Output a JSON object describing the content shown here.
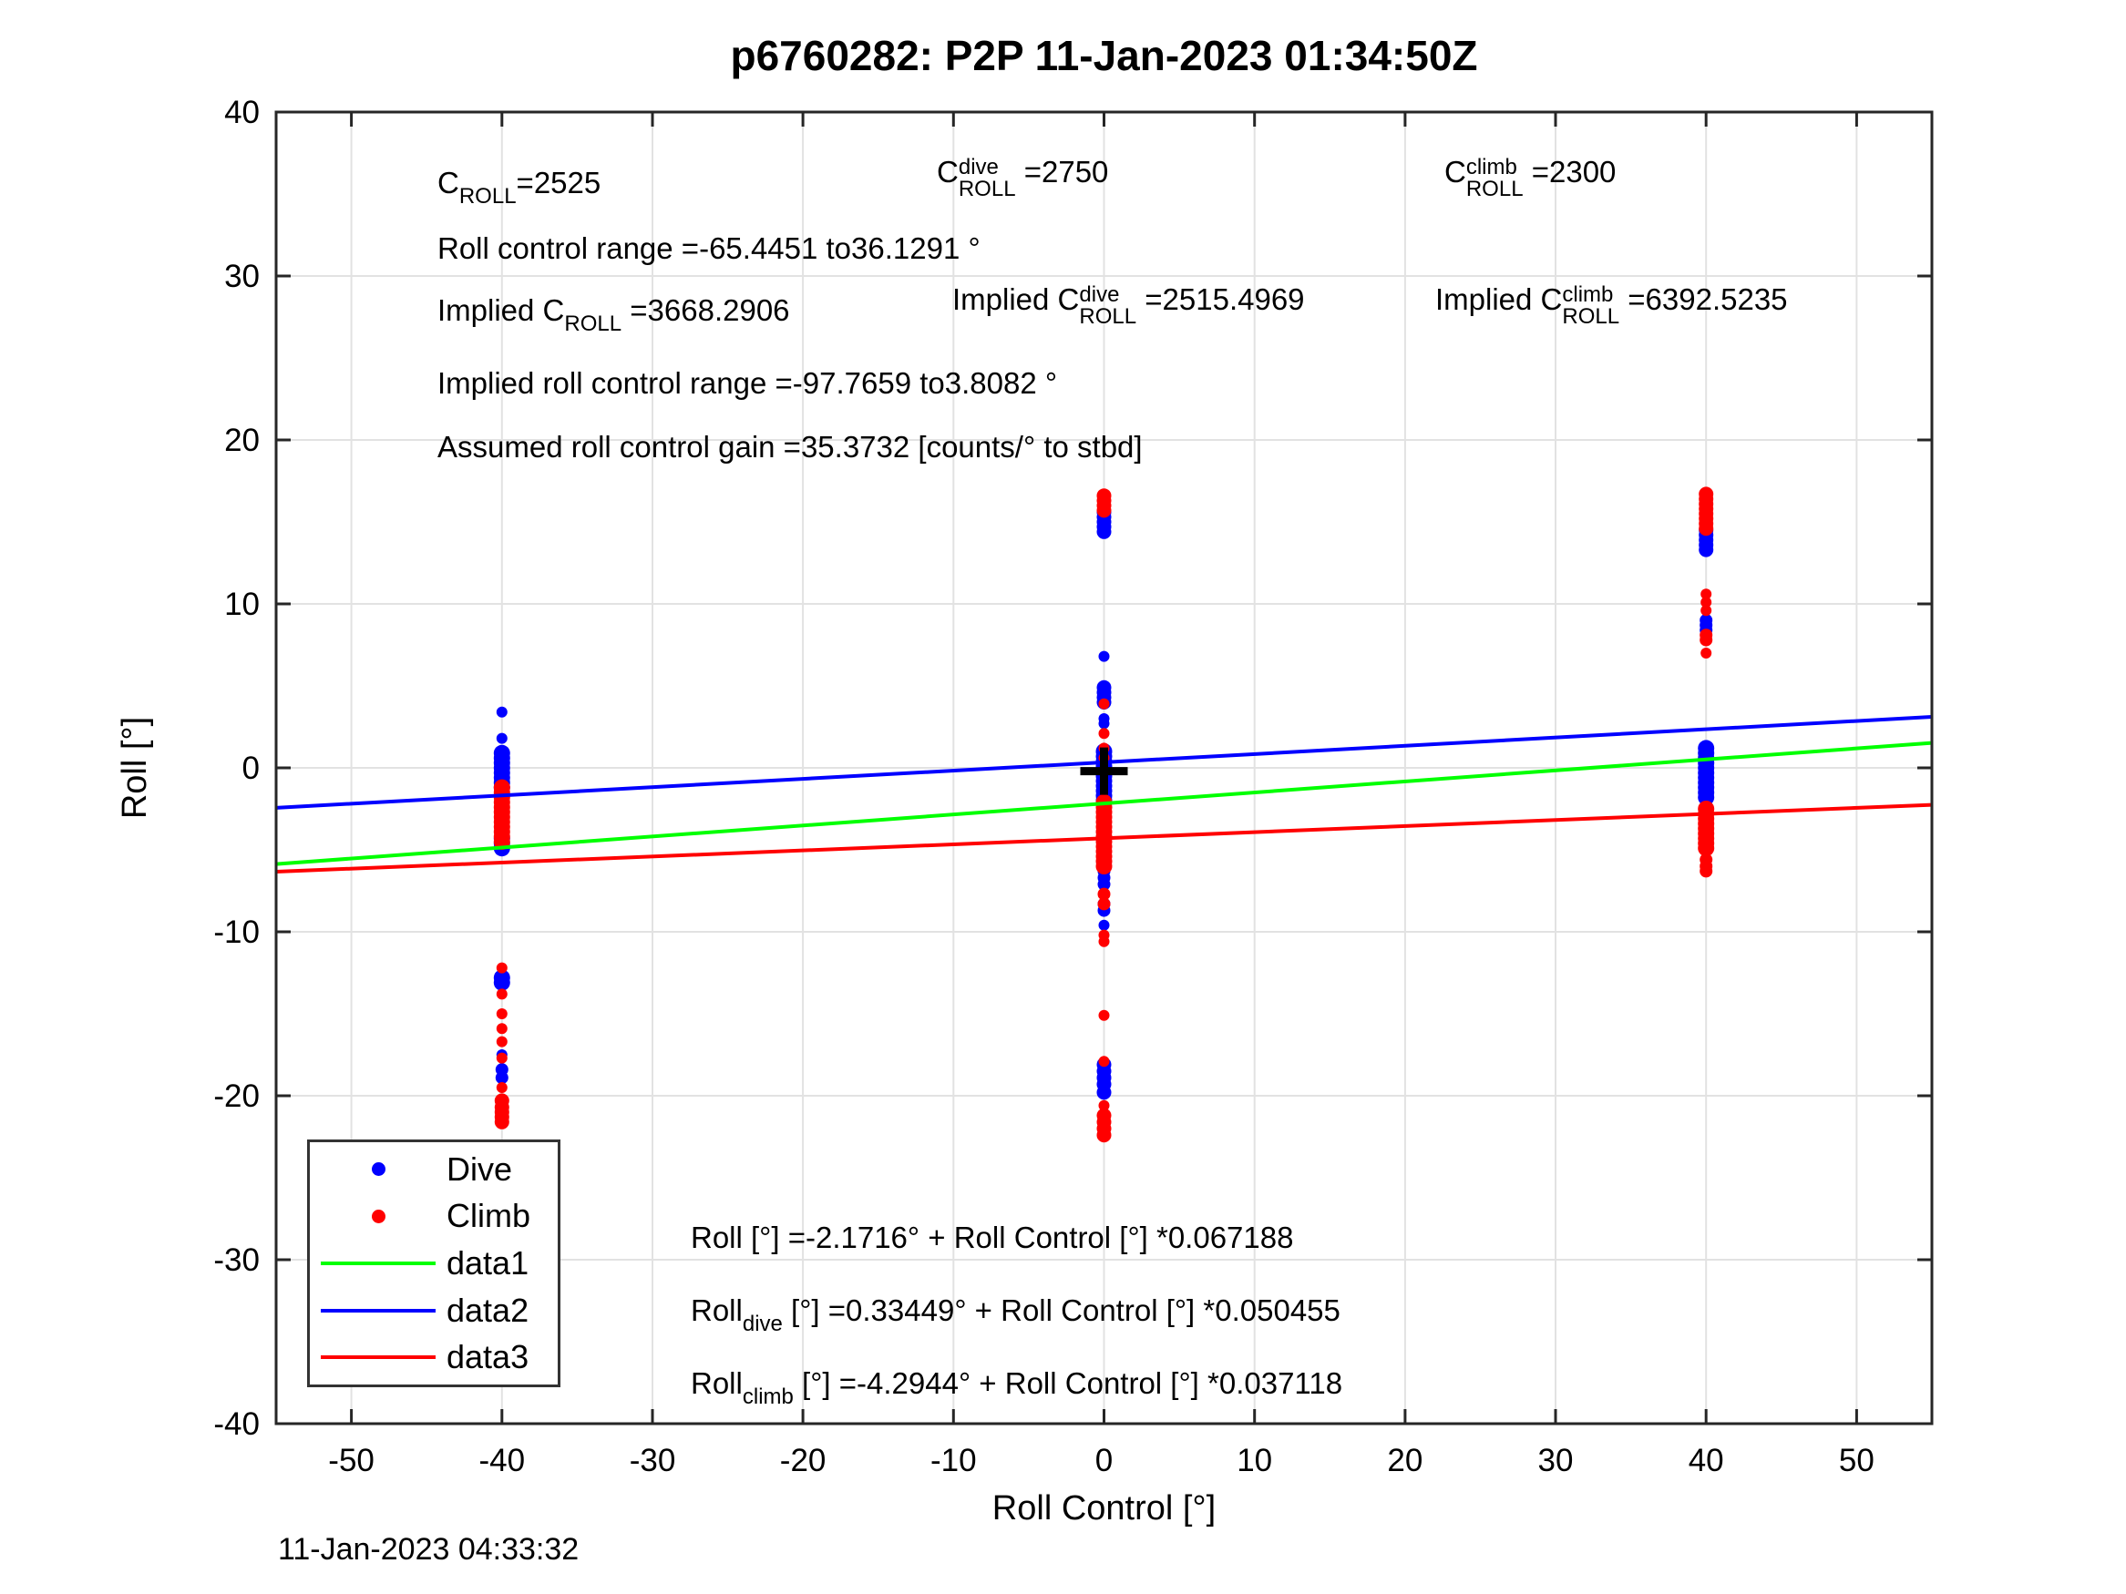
{
  "title": "p6760282: P2P 11-Jan-2023 01:34:50Z",
  "footer_timestamp": "11-Jan-2023 04:33:32",
  "colors": {
    "dive": "#0000ff",
    "climb": "#ff0000",
    "data1": "#00ff00",
    "data2": "#0000ff",
    "data3": "#ff0000",
    "grid": "#e2e2e2",
    "axis": "#262626",
    "cross": "#000000"
  },
  "anno": {
    "c_roll": [
      {
        "t": "C"
      },
      {
        "sb": "ROLL"
      },
      {
        "t": "=2525"
      }
    ],
    "c_roll_dive": [
      {
        "t": "C"
      },
      {
        "st": [
          "dive",
          "ROLL"
        ]
      },
      {
        "t": " =2750"
      }
    ],
    "c_roll_climb": [
      {
        "t": "C"
      },
      {
        "st": [
          "climb",
          "ROLL"
        ]
      },
      {
        "t": " =2300"
      }
    ],
    "roll_control_range": [
      {
        "t": "Roll control range =-65.4451 to36.1291 °"
      }
    ],
    "implied_c_roll": [
      {
        "t": "Implied C"
      },
      {
        "sb": "ROLL"
      },
      {
        "t": " =3668.2906"
      }
    ],
    "implied_c_roll_dive": [
      {
        "t": "Implied C"
      },
      {
        "st": [
          "dive",
          "ROLL"
        ]
      },
      {
        "t": " =2515.4969"
      }
    ],
    "implied_c_roll_climb": [
      {
        "t": "Implied C"
      },
      {
        "st": [
          "climb",
          "ROLL"
        ]
      },
      {
        "t": " =6392.5235"
      }
    ],
    "implied_roll_control_range": [
      {
        "t": "Implied roll control range =-97.7659 to3.8082 °"
      }
    ],
    "assumed_gain": [
      {
        "t": "Assumed roll control gain =35.3732 [counts/° to stbd]"
      }
    ],
    "eq_all": [
      {
        "t": "Roll [°] =-2.1716° + Roll Control [°] *0.067188"
      }
    ],
    "eq_dive": [
      {
        "t": "Roll"
      },
      {
        "sb": "dive"
      },
      {
        "t": " [°] =0.33449° + Roll Control [°] *0.050455"
      }
    ],
    "eq_climb": [
      {
        "t": "Roll"
      },
      {
        "sb": "climb"
      },
      {
        "t": " [°] =-4.2944° + Roll Control [°] *0.037118"
      }
    ]
  },
  "legend": {
    "items": [
      {
        "label": "Dive",
        "marker": "dot",
        "color": "#0000ff"
      },
      {
        "label": "Climb",
        "marker": "dot",
        "color": "#ff0000"
      },
      {
        "label": "data1",
        "marker": "line",
        "color": "#00ff00"
      },
      {
        "label": "data2",
        "marker": "line",
        "color": "#0000ff"
      },
      {
        "label": "data3",
        "marker": "line",
        "color": "#ff0000"
      }
    ]
  },
  "chart_data": {
    "type": "scatter",
    "title": "p6760282: P2P 11-Jan-2023 01:34:50Z",
    "xlabel": "Roll Control [°]",
    "ylabel": "Roll [°]",
    "xlim": [
      -55,
      55
    ],
    "ylim": [
      -40,
      40
    ],
    "xticks": [
      -50,
      -40,
      -30,
      -20,
      -10,
      0,
      10,
      20,
      30,
      40,
      50
    ],
    "yticks": [
      -40,
      -30,
      -20,
      -10,
      0,
      10,
      20,
      30,
      40
    ],
    "grid": true,
    "legend_position": "southwest",
    "scatter_series": [
      {
        "name": "Dive",
        "color": "#0000ff",
        "clusters": [
          {
            "x": -40,
            "r": 6,
            "ys": [
              3.4,
              1.8
            ]
          },
          {
            "x": -40,
            "r": 9,
            "ys": [
              0.9,
              0.6,
              0.3,
              0.0,
              -0.3,
              -0.6,
              -0.9,
              -1.2,
              -4.3,
              -4.6,
              -4.9
            ]
          },
          {
            "x": -40,
            "r": 9,
            "ys": [
              -12.8,
              -13.1
            ]
          },
          {
            "x": -40,
            "r": 6,
            "ys": [
              -17.5
            ]
          },
          {
            "x": -40,
            "r": 7,
            "ys": [
              -18.4,
              -18.9
            ]
          },
          {
            "x": 0,
            "r": 8,
            "ys": [
              15.6,
              15.3,
              15.0,
              14.7,
              14.4
            ]
          },
          {
            "x": 0,
            "r": 6,
            "ys": [
              6.8
            ]
          },
          {
            "x": 0,
            "r": 8,
            "ys": [
              4.9,
              4.6,
              4.3,
              4.0
            ]
          },
          {
            "x": 0,
            "r": 6,
            "ys": [
              3.0,
              2.7
            ]
          },
          {
            "x": 0,
            "r": 9,
            "ys": [
              1.0,
              0.7,
              0.4,
              0.1,
              -0.2,
              -0.5,
              -0.8,
              -1.1,
              -1.4,
              -1.7,
              -2.0
            ]
          },
          {
            "x": 0,
            "r": 7,
            "ys": [
              -6.3,
              -6.7,
              -7.1
            ]
          },
          {
            "x": 0,
            "r": 7,
            "ys": [
              -8.3,
              -8.7
            ]
          },
          {
            "x": 0,
            "r": 6,
            "ys": [
              -9.6
            ]
          },
          {
            "x": 0,
            "r": 8,
            "ys": [
              -18.1,
              -18.5,
              -18.9,
              -19.3,
              -19.8
            ]
          },
          {
            "x": 40,
            "r": 8,
            "ys": [
              14.5,
              14.2,
              13.9,
              13.6,
              13.3
            ]
          },
          {
            "x": 40,
            "r": 7,
            "ys": [
              9.0,
              8.7,
              8.4
            ]
          },
          {
            "x": 40,
            "r": 9,
            "ys": [
              1.2,
              0.9,
              0.6,
              0.3,
              0.0,
              -0.3,
              -0.6,
              -0.9,
              -1.2,
              -1.5,
              -1.8
            ]
          }
        ]
      },
      {
        "name": "Climb",
        "color": "#ff0000",
        "clusters": [
          {
            "x": -40,
            "r": 9,
            "ys": [
              -1.2,
              -1.5,
              -1.8,
              -2.1,
              -2.4,
              -2.7,
              -3.0,
              -3.3,
              -3.6,
              -3.9,
              -4.2,
              -4.5
            ]
          },
          {
            "x": -40,
            "r": 6,
            "ys": [
              -12.2,
              -13.8,
              -15.0,
              -15.9,
              -16.7,
              -17.7,
              -19.5
            ]
          },
          {
            "x": -40,
            "r": 8,
            "ys": [
              -20.3,
              -20.7,
              -21.0,
              -21.3,
              -21.6
            ]
          },
          {
            "x": 0,
            "r": 8,
            "ys": [
              16.6,
              16.3,
              16.0,
              15.7
            ]
          },
          {
            "x": 0,
            "r": 6,
            "ys": [
              3.9,
              2.1,
              1.2,
              0.6
            ]
          },
          {
            "x": 0,
            "r": 9,
            "ys": [
              -2.1,
              -2.4,
              -2.7,
              -3.0,
              -3.3,
              -3.6,
              -3.9,
              -4.2,
              -4.5,
              -4.8,
              -5.1,
              -5.4,
              -5.7,
              -6.0
            ]
          },
          {
            "x": 0,
            "r": 7,
            "ys": [
              -7.7,
              -8.3
            ]
          },
          {
            "x": 0,
            "r": 6,
            "ys": [
              -10.2,
              -10.6
            ]
          },
          {
            "x": 0,
            "r": 6,
            "ys": [
              -15.1,
              -17.9,
              -20.6
            ]
          },
          {
            "x": 0,
            "r": 8,
            "ys": [
              -21.2,
              -21.6,
              -22.0,
              -22.4
            ]
          },
          {
            "x": 40,
            "r": 8,
            "ys": [
              16.7,
              16.4,
              16.1,
              15.8,
              15.5,
              15.2,
              14.9,
              14.6
            ]
          },
          {
            "x": 40,
            "r": 6,
            "ys": [
              10.6,
              10.1,
              9.6
            ]
          },
          {
            "x": 40,
            "r": 7,
            "ys": [
              8.1,
              7.8
            ]
          },
          {
            "x": 40,
            "r": 6,
            "ys": [
              7.0
            ]
          },
          {
            "x": 40,
            "r": 9,
            "ys": [
              -2.5,
              -2.8,
              -3.1,
              -3.4,
              -3.7,
              -4.0,
              -4.3,
              -4.6,
              -4.9
            ]
          },
          {
            "x": 40,
            "r": 7,
            "ys": [
              -5.6,
              -6.0,
              -6.3
            ]
          }
        ]
      }
    ],
    "fit_lines": [
      {
        "name": "data1",
        "color": "#00ff00",
        "intercept": -2.1716,
        "slope": 0.067188
      },
      {
        "name": "data2",
        "color": "#0000ff",
        "intercept": 0.33449,
        "slope": 0.050455
      },
      {
        "name": "data3",
        "color": "#ff0000",
        "intercept": -4.2944,
        "slope": 0.037118
      }
    ],
    "cross_marker": {
      "x": 0,
      "y": -0.2
    }
  }
}
